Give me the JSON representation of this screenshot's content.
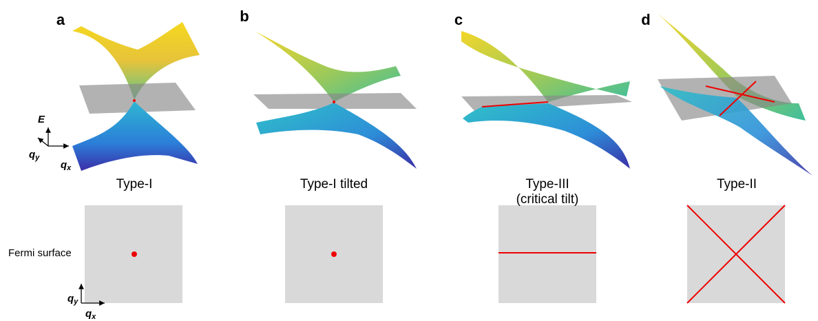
{
  "panels": [
    {
      "letter": "a",
      "label": [
        "Type-I"
      ]
    },
    {
      "letter": "b",
      "label": [
        "Type-I tilted"
      ]
    },
    {
      "letter": "c",
      "label": [
        "Type-III",
        "(critical tilt)"
      ]
    },
    {
      "letter": "d",
      "label": [
        "Type-II"
      ]
    }
  ],
  "row_label": "Fermi surface",
  "axes": {
    "energy": "E",
    "qy": {
      "main": "q",
      "sub": "y"
    },
    "qx": {
      "main": "q",
      "sub": "x"
    }
  }
}
